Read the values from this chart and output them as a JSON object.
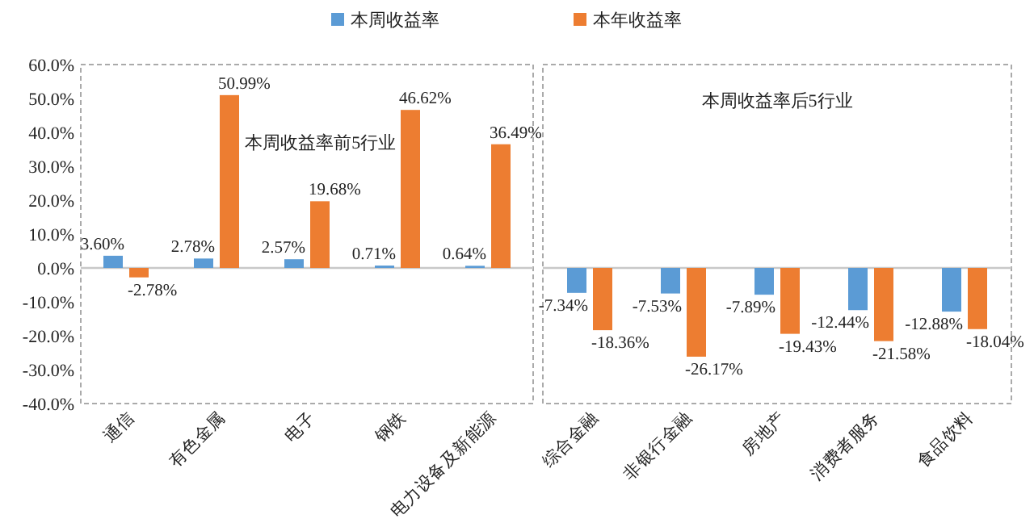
{
  "chart_data": [
    {
      "type": "bar",
      "title": "本周收益率前5行业",
      "categories": [
        "通信",
        "有色金属",
        "电子",
        "钢铁",
        "电力设备及新能源"
      ],
      "series": [
        {
          "name": "本周收益率",
          "color": "#5b9bd5",
          "values": [
            3.6,
            2.78,
            2.57,
            0.71,
            0.64
          ],
          "value_labels": [
            "3.60%",
            "2.78%",
            "2.57%",
            "0.71%",
            "0.64%"
          ]
        },
        {
          "name": "本年收益率",
          "color": "#ed7d31",
          "values": [
            -2.78,
            50.99,
            19.68,
            46.62,
            36.49
          ],
          "value_labels": [
            "-2.78%",
            "50.99%",
            "19.68%",
            "46.62%",
            "36.49%"
          ]
        }
      ],
      "ylim": [
        -40,
        60
      ],
      "yticks": [
        {
          "value": -40,
          "label": "-40.0%"
        },
        {
          "value": -30,
          "label": "-30.0%"
        },
        {
          "value": -20,
          "label": "-20.0%"
        },
        {
          "value": -10,
          "label": "-10.0%"
        },
        {
          "value": 0,
          "label": "0.0%"
        },
        {
          "value": 10,
          "label": "10.0%"
        },
        {
          "value": 20,
          "label": "20.0%"
        },
        {
          "value": 30,
          "label": "30.0%"
        },
        {
          "value": 40,
          "label": "40.0%"
        },
        {
          "value": 50,
          "label": "50.0%"
        },
        {
          "value": 60,
          "label": "60.0%"
        }
      ],
      "legend": "top"
    },
    {
      "type": "bar",
      "title": "本周收益率后5行业",
      "categories": [
        "综合金融",
        "非银行金融",
        "房地产",
        "消费者服务",
        "食品饮料"
      ],
      "series": [
        {
          "color": "#5b9bd5",
          "values": [
            -7.34,
            -7.53,
            -7.89,
            -12.44,
            -12.88
          ],
          "value_labels": [
            "-7.34%",
            "-7.53%",
            "-7.89%",
            "-12.44%",
            "-12.88%"
          ]
        },
        {
          "color": "#ed7d31",
          "values": [
            -18.36,
            -26.17,
            -19.43,
            -21.58,
            -18.04
          ],
          "value_labels": [
            "-18.36%",
            "-26.17%",
            "-19.43%",
            "-21.58%",
            "-18.04%"
          ]
        }
      ],
      "ylim": [
        -40,
        60
      ],
      "tick_labels": "x"
    }
  ]
}
